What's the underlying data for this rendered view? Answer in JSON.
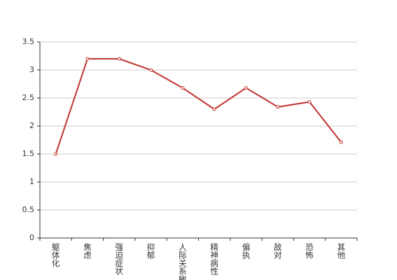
{
  "chart_data": {
    "type": "line",
    "categories": [
      "躯体化",
      "焦虑",
      "强迫症状",
      "抑郁",
      "人际关系敏感",
      "精神病性",
      "偏执",
      "敌对",
      "恐怖",
      "其他"
    ],
    "series": [
      {
        "color": "#c23531",
        "values": [
          1.5,
          3.2,
          3.2,
          3.0,
          2.68,
          2.3,
          2.68,
          2.34,
          2.43,
          1.71
        ]
      }
    ],
    "ylim": [
      0,
      3.5
    ],
    "yticks": [
      0,
      0.5,
      1,
      1.5,
      2,
      2.5,
      3,
      3.5
    ],
    "grid": true
  }
}
